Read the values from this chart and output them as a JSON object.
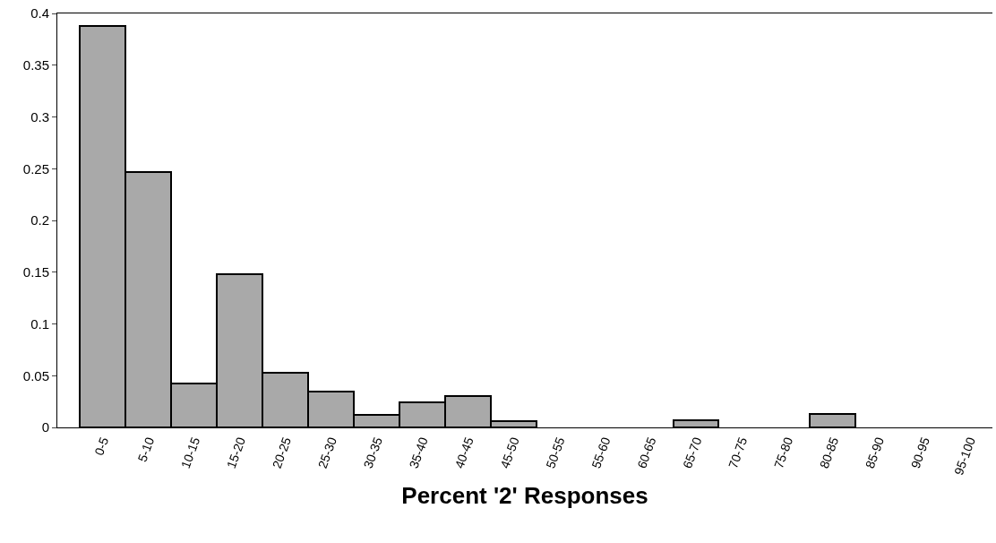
{
  "chart_data": {
    "type": "bar",
    "xlabel": "Percent '2' Responses",
    "categories": [
      "0-5",
      "5-10",
      "10-15",
      "15-20",
      "20-25",
      "25-30",
      "30-35",
      "35-40",
      "40-45",
      "45-50",
      "50-55",
      "55-60",
      "60-65",
      "65-70",
      "70-75",
      "75-80",
      "80-85",
      "85-90",
      "90-95",
      "95-100"
    ],
    "values": [
      0.388,
      0.247,
      0.042,
      0.148,
      0.053,
      0.035,
      0.012,
      0.024,
      0.03,
      0.006,
      0,
      0,
      0,
      0.007,
      0,
      0,
      0.013,
      0,
      0,
      0
    ],
    "color": "#a9a9a9",
    "ylim": [
      0,
      0.4
    ],
    "yticks": [
      0,
      0.05,
      0.1,
      0.15,
      0.2,
      0.25,
      0.3,
      0.35,
      0.4
    ],
    "grid": false,
    "legend": false
  }
}
